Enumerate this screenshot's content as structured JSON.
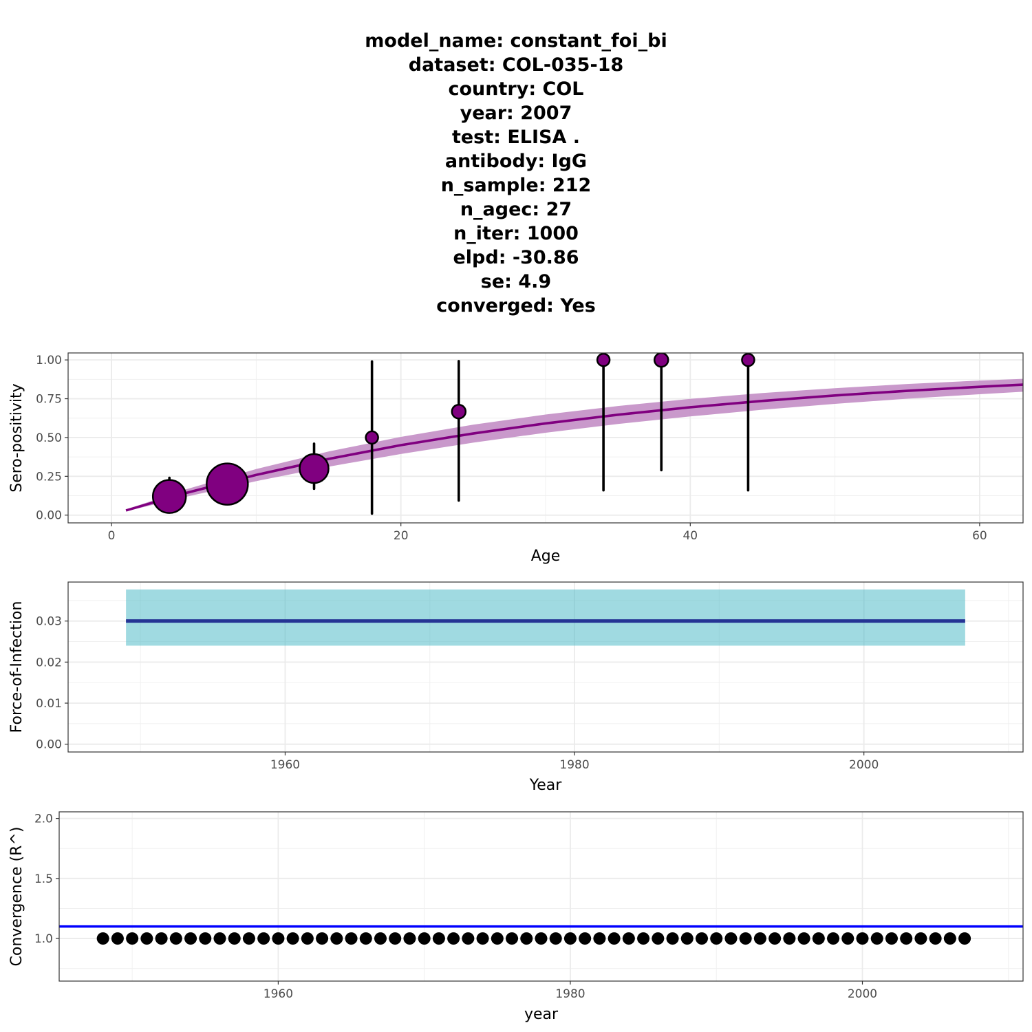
{
  "title_lines": [
    "model_name: constant_foi_bi",
    "dataset: COL-035-18",
    "country: COL",
    "year: 2007",
    "test: ELISA .",
    "antibody: IgG",
    "n_sample: 212",
    "n_agec: 27",
    "n_iter: 1000",
    "elpd: -30.86",
    "se: 4.9",
    "converged: Yes"
  ],
  "chart_data": [
    {
      "type": "line",
      "panel": "seroprevalence",
      "xlabel": "Age",
      "ylabel": "Sero-positivity",
      "xlim": [
        -3,
        63
      ],
      "ylim": [
        -0.05,
        1.045
      ],
      "xticks": [
        0,
        20,
        40,
        60
      ],
      "xtick_labels": [
        "0",
        "20",
        "40",
        "60"
      ],
      "yticks": [
        0,
        0.25,
        0.5,
        0.75,
        1
      ],
      "ytick_labels": [
        "0.00",
        "0.25",
        "0.50",
        "0.75",
        "1.00"
      ],
      "grid": true,
      "model_curve": {
        "color": "#800080",
        "band_color": "#C693C8",
        "x": [
          1,
          5,
          10,
          15,
          20,
          25,
          30,
          35,
          40,
          45,
          50,
          55,
          60,
          63
        ],
        "y": [
          0.03,
          0.139,
          0.259,
          0.362,
          0.451,
          0.526,
          0.591,
          0.647,
          0.695,
          0.736,
          0.771,
          0.801,
          0.827,
          0.841
        ],
        "lower": [
          0.024,
          0.115,
          0.219,
          0.312,
          0.394,
          0.467,
          0.531,
          0.587,
          0.636,
          0.679,
          0.717,
          0.75,
          0.779,
          0.795
        ],
        "upper": [
          0.036,
          0.162,
          0.297,
          0.41,
          0.504,
          0.583,
          0.648,
          0.703,
          0.749,
          0.787,
          0.818,
          0.845,
          0.867,
          0.878
        ]
      },
      "observed": [
        {
          "age": 4,
          "prev": 0.12,
          "lower": 0.04,
          "upper": 0.24,
          "size": 24
        },
        {
          "age": 8,
          "prev": 0.2,
          "lower": 0.12,
          "upper": 0.29,
          "size": 30
        },
        {
          "age": 14,
          "prev": 0.3,
          "lower": 0.17,
          "upper": 0.46,
          "size": 21
        },
        {
          "age": 18,
          "prev": 0.5,
          "lower": 0.01,
          "upper": 0.99,
          "size": 9
        },
        {
          "age": 24,
          "prev": 0.667,
          "lower": 0.094,
          "upper": 0.992,
          "size": 10
        },
        {
          "age": 34,
          "prev": 1.0,
          "lower": 0.16,
          "upper": 1.0,
          "size": 9
        },
        {
          "age": 38,
          "prev": 1.0,
          "lower": 0.29,
          "upper": 1.0,
          "size": 10
        },
        {
          "age": 44,
          "prev": 1.0,
          "lower": 0.16,
          "upper": 1.0,
          "size": 9
        }
      ],
      "point_color": "#800080"
    },
    {
      "type": "area",
      "panel": "force_of_infection",
      "xlabel": "Year",
      "ylabel": "Force-of-Infection",
      "xlim": [
        1945,
        2011
      ],
      "ylim": [
        -0.0019,
        0.0395
      ],
      "xticks": [
        1960,
        1980,
        2000
      ],
      "xtick_labels": [
        "1960",
        "1980",
        "2000"
      ],
      "yticks": [
        0,
        0.01,
        0.02,
        0.03
      ],
      "ytick_labels": [
        "0.00",
        "0.01",
        "0.02",
        "0.03"
      ],
      "grid": true,
      "x_range": [
        1949,
        2007
      ],
      "foi": 0.03,
      "foi_lower": 0.024,
      "foi_upper": 0.0377,
      "line_color": "#253494",
      "band_color": "#41B6C4"
    },
    {
      "type": "scatter",
      "panel": "convergence",
      "xlabel": "year",
      "ylabel": "Convergence (R^)",
      "xlim": [
        1945,
        2011
      ],
      "ylim": [
        0.645,
        2.055
      ],
      "xticks": [
        1960,
        1980,
        2000
      ],
      "xtick_labels": [
        "1960",
        "1980",
        "2000"
      ],
      "yticks": [
        1.0,
        1.5,
        2.0
      ],
      "ytick_labels": [
        "1.0",
        "1.5",
        "2.0"
      ],
      "grid": true,
      "reference_line": 1.1,
      "reference_color": "#0000FF",
      "year_start": 1948,
      "year_end": 2007,
      "rhat": 1.0
    }
  ]
}
